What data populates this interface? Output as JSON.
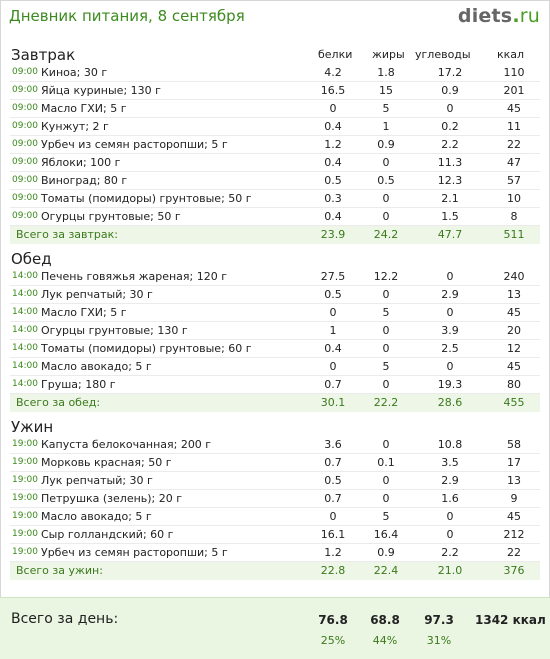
{
  "header": {
    "title": "Дневник питания, 8 сентября",
    "logo_main": "diets",
    "logo_dot": ".",
    "logo_tld": "ru"
  },
  "columns": {
    "protein": "белки",
    "fat": "жиры",
    "carbs": "углеводы",
    "kcal": "ккал"
  },
  "breakfast": {
    "title": "Завтрак",
    "items": [
      {
        "time": "09:00",
        "food": "Киноа; 30 г",
        "p": "4.2",
        "f": "1.8",
        "c": "17.2",
        "k": "110"
      },
      {
        "time": "09:00",
        "food": "Яйца куриные; 130 г",
        "p": "16.5",
        "f": "15",
        "c": "0.9",
        "k": "201"
      },
      {
        "time": "09:00",
        "food": "Масло ГХИ; 5 г",
        "p": "0",
        "f": "5",
        "c": "0",
        "k": "45"
      },
      {
        "time": "09:00",
        "food": "Кунжут; 2 г",
        "p": "0.4",
        "f": "1",
        "c": "0.2",
        "k": "11"
      },
      {
        "time": "09:00",
        "food": "Урбеч из семян расторопши; 5 г",
        "p": "1.2",
        "f": "0.9",
        "c": "2.2",
        "k": "22"
      },
      {
        "time": "09:00",
        "food": "Яблоки; 100 г",
        "p": "0.4",
        "f": "0",
        "c": "11.3",
        "k": "47"
      },
      {
        "time": "09:00",
        "food": "Виноград; 80 г",
        "p": "0.5",
        "f": "0.5",
        "c": "12.3",
        "k": "57"
      },
      {
        "time": "09:00",
        "food": "Томаты (помидоры) грунтовые; 50 г",
        "p": "0.3",
        "f": "0",
        "c": "2.1",
        "k": "10"
      },
      {
        "time": "09:00",
        "food": "Огурцы грунтовые; 50 г",
        "p": "0.4",
        "f": "0",
        "c": "1.5",
        "k": "8"
      }
    ],
    "total": {
      "label": "Всего за завтрак:",
      "p": "23.9",
      "f": "24.2",
      "c": "47.7",
      "k": "511"
    }
  },
  "lunch": {
    "title": "Обед",
    "items": [
      {
        "time": "14:00",
        "food": "Печень говяжья жареная; 120 г",
        "p": "27.5",
        "f": "12.2",
        "c": "0",
        "k": "240"
      },
      {
        "time": "14:00",
        "food": "Лук репчатый; 30 г",
        "p": "0.5",
        "f": "0",
        "c": "2.9",
        "k": "13"
      },
      {
        "time": "14:00",
        "food": "Масло ГХИ; 5 г",
        "p": "0",
        "f": "5",
        "c": "0",
        "k": "45"
      },
      {
        "time": "14:00",
        "food": "Огурцы грунтовые; 130 г",
        "p": "1",
        "f": "0",
        "c": "3.9",
        "k": "20"
      },
      {
        "time": "14:00",
        "food": "Томаты (помидоры) грунтовые; 60 г",
        "p": "0.4",
        "f": "0",
        "c": "2.5",
        "k": "12"
      },
      {
        "time": "14:00",
        "food": "Масло авокадо; 5 г",
        "p": "0",
        "f": "5",
        "c": "0",
        "k": "45"
      },
      {
        "time": "14:00",
        "food": "Груша; 180 г",
        "p": "0.7",
        "f": "0",
        "c": "19.3",
        "k": "80"
      }
    ],
    "total": {
      "label": "Всего за обед:",
      "p": "30.1",
      "f": "22.2",
      "c": "28.6",
      "k": "455"
    }
  },
  "dinner": {
    "title": "Ужин",
    "items": [
      {
        "time": "19:00",
        "food": "Капуста белокочанная; 200 г",
        "p": "3.6",
        "f": "0",
        "c": "10.8",
        "k": "58"
      },
      {
        "time": "19:00",
        "food": "Морковь красная; 50 г",
        "p": "0.7",
        "f": "0.1",
        "c": "3.5",
        "k": "17"
      },
      {
        "time": "19:00",
        "food": "Лук репчатый; 30 г",
        "p": "0.5",
        "f": "0",
        "c": "2.9",
        "k": "13"
      },
      {
        "time": "19:00",
        "food": "Петрушка (зелень); 20 г",
        "p": "0.7",
        "f": "0",
        "c": "1.6",
        "k": "9"
      },
      {
        "time": "19:00",
        "food": "Масло авокадо; 5 г",
        "p": "0",
        "f": "5",
        "c": "0",
        "k": "45"
      },
      {
        "time": "19:00",
        "food": "Сыр голландский; 60 г",
        "p": "16.1",
        "f": "16.4",
        "c": "0",
        "k": "212"
      },
      {
        "time": "19:00",
        "food": "Урбеч из семян расторопши; 5 г",
        "p": "1.2",
        "f": "0.9",
        "c": "2.2",
        "k": "22"
      }
    ],
    "total": {
      "label": "Всего за ужин:",
      "p": "22.8",
      "f": "22.4",
      "c": "21.0",
      "k": "376"
    }
  },
  "day": {
    "label": "Всего за день:",
    "p": "76.8",
    "f": "68.8",
    "c": "97.3",
    "k": "1342 ккал",
    "p_pct": "25%",
    "f_pct": "44%",
    "c_pct": "31%"
  }
}
